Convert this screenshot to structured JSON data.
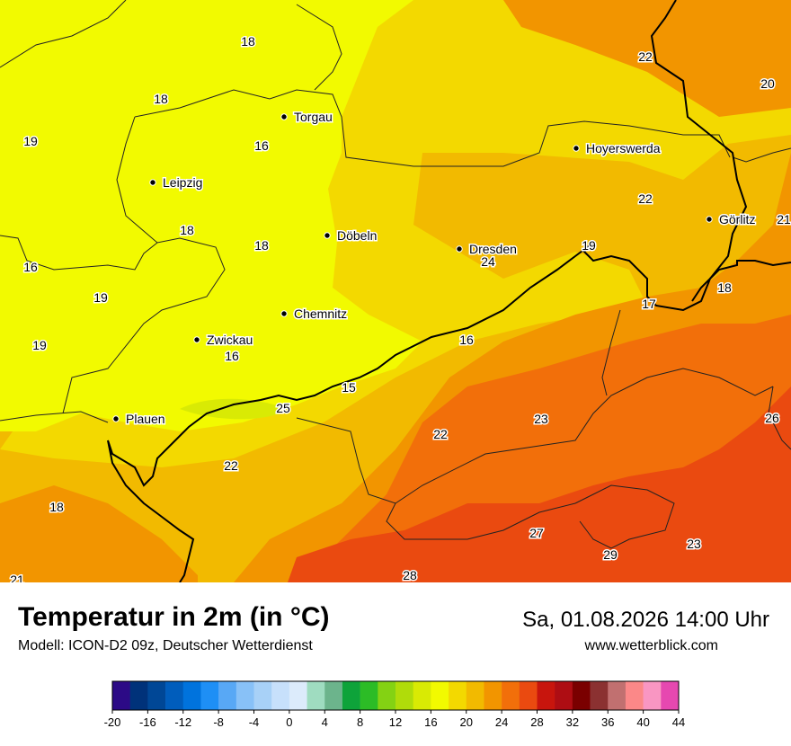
{
  "title": "Temperatur in 2m (in °C)",
  "model": "Modell: ICON-D2 09z, Deutscher Wetterdienst",
  "datetime": "Sa, 01.08.2026 14:00 Uhr",
  "website": "www.wetterblick.com",
  "cities": [
    {
      "name": "Torgau"
    },
    {
      "name": "Hoyerswerda"
    },
    {
      "name": "Leipzig"
    },
    {
      "name": "Görlitz"
    },
    {
      "name": "Döbeln"
    },
    {
      "name": "Dresden"
    },
    {
      "name": "Chemnitz"
    },
    {
      "name": "Zwickau"
    },
    {
      "name": "Plauen"
    }
  ],
  "temperature_labels": [
    "18",
    "22",
    "20",
    "18",
    "19",
    "16",
    "22",
    "21",
    "18",
    "18",
    "16",
    "19",
    "24",
    "18",
    "19",
    "17",
    "16",
    "19",
    "16",
    "15",
    "25",
    "23",
    "26",
    "22",
    "18",
    "22",
    "27",
    "23",
    "29",
    "21",
    "28"
  ],
  "legend": {
    "tick_labels": [
      "-20",
      "-16",
      "-12",
      "-8",
      "-4",
      "0",
      "4",
      "8",
      "12",
      "16",
      "20",
      "24",
      "28",
      "32",
      "36",
      "40",
      "44"
    ],
    "colors": [
      "#2c0a86",
      "#00327a",
      "#004796",
      "#005dbc",
      "#0073dd",
      "#1e8ff5",
      "#58a8f5",
      "#88c1f7",
      "#a8d1f7",
      "#c7e0fb",
      "#dcebfb",
      "#9fdcc0",
      "#6cb48c",
      "#0ea33a",
      "#2cbc26",
      "#84d213",
      "#b0dc0a",
      "#d9ea04",
      "#f2fa00",
      "#f3d900",
      "#f2ba00",
      "#f29500",
      "#f26f0a",
      "#ea4a10",
      "#c8150d",
      "#ae0d13",
      "#7a0000",
      "#8b3131",
      "#c17070",
      "#fb8888",
      "#f996c2",
      "#e648b0"
    ]
  },
  "map_colors": {
    "t15": "#d9ea04",
    "t17": "#f2fa00",
    "t19": "#f3d900",
    "t22": "#f2ba00",
    "t24": "#f29500",
    "t26": "#f26f0a",
    "t28": "#ea4a10"
  }
}
